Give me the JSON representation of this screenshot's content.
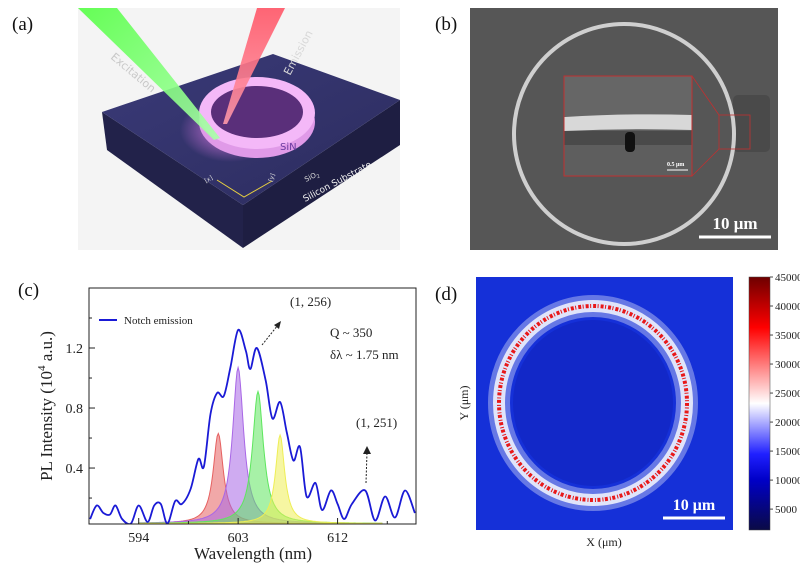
{
  "panels": {
    "a": {
      "label": "(a)",
      "excitation": "Excitation",
      "emission": "Emission",
      "sin": "SiN",
      "sio2_main": "SiO",
      "sio2_sub": "2",
      "substrate": "Silicon Substrate",
      "axis_x": "[x]",
      "axis_y": "[y]"
    },
    "b": {
      "label": "(b)",
      "scale_bar": "10 μm",
      "inset_scale_bar": "0.5 μm"
    },
    "c": {
      "label": "(c)"
    },
    "d": {
      "label": "(d)",
      "scale_bar": "10 μm"
    }
  },
  "colors": {
    "curve": "#1a1ad6",
    "peak_red": "#e66060",
    "peak_purple": "#a866e6",
    "peak_green": "#5ee65e",
    "peak_yellow": "#eeee55"
  },
  "chart_data": [
    {
      "type": "line",
      "title": "",
      "xlabel": "Wavelength (nm)",
      "ylabel_prefix": "PL  Intensity (10",
      "ylabel_exp": "4",
      "ylabel_suffix": " a.u.)",
      "xlim": [
        589.5,
        619.1
      ],
      "ylim": [
        0.027,
        1.6
      ],
      "xticks": [
        594,
        603,
        612
      ],
      "xtick_labels": [
        "594",
        "603",
        "612"
      ],
      "yticks": [
        0.4,
        0.8,
        1.2
      ],
      "ytick_labels": [
        "0.4",
        "0.8",
        "1.2"
      ],
      "grid": false,
      "legend": {
        "position": "top-left",
        "entries": [
          "Notch emission"
        ]
      },
      "annotations": {
        "mode_1": "(1, 256)",
        "mode_2": "(1, 251)",
        "q": "Q ~ 350",
        "dl": "δλ ~ 1.75 nm"
      },
      "series": [
        {
          "name": "Notch emission",
          "x": [
            589.6,
            590.2,
            590.8,
            591.4,
            591.9,
            592.5,
            593.3,
            594.0,
            594.8,
            595.4,
            596.0,
            596.6,
            597.3,
            597.9,
            598.7,
            599.4,
            599.9,
            600.5,
            601.1,
            601.7,
            602.3,
            603.0,
            603.7,
            604.1,
            604.7,
            605.5,
            606.1,
            606.8,
            607.4,
            608.0,
            608.6,
            609.2,
            610.0,
            610.6,
            611.4,
            612.0,
            612.6,
            613.3,
            614.5,
            615.4,
            616.3,
            617.2,
            618.1,
            619.0
          ],
          "y": [
            0.06,
            0.15,
            0.1,
            0.09,
            0.15,
            0.06,
            0.03,
            0.15,
            0.04,
            0.15,
            0.16,
            0.03,
            0.18,
            0.16,
            0.26,
            0.46,
            0.41,
            0.76,
            0.9,
            0.88,
            1.07,
            1.32,
            1.18,
            1.06,
            1.2,
            0.98,
            0.73,
            0.84,
            0.64,
            0.45,
            0.54,
            0.21,
            0.3,
            0.12,
            0.25,
            0.16,
            0.06,
            0.16,
            0.25,
            0.05,
            0.21,
            0.07,
            0.25,
            0.1
          ]
        }
      ],
      "peaks": [
        {
          "name": "peak-red",
          "center": 601.2,
          "amplitude": 0.6,
          "hwhm": 0.55
        },
        {
          "name": "peak-purple",
          "center": 603.0,
          "amplitude": 1.04,
          "hwhm": 0.6
        },
        {
          "name": "peak-green",
          "center": 604.8,
          "amplitude": 0.88,
          "hwhm": 0.6
        },
        {
          "name": "peak-yellow",
          "center": 606.8,
          "amplitude": 0.59,
          "hwhm": 0.5
        }
      ]
    },
    {
      "type": "heatmap",
      "xlabel": "X (μm)",
      "ylabel": "Y (μm)",
      "colorbar": {
        "range": [
          1400,
          45000
        ],
        "ticks": [
          5000,
          10000,
          15000,
          20000,
          25000,
          30000,
          35000,
          40000,
          45000
        ],
        "tick_labels": [
          "5000",
          "10000",
          "15000",
          "20000",
          "25000",
          "30000",
          "35000",
          "40000",
          "45000"
        ]
      }
    }
  ]
}
